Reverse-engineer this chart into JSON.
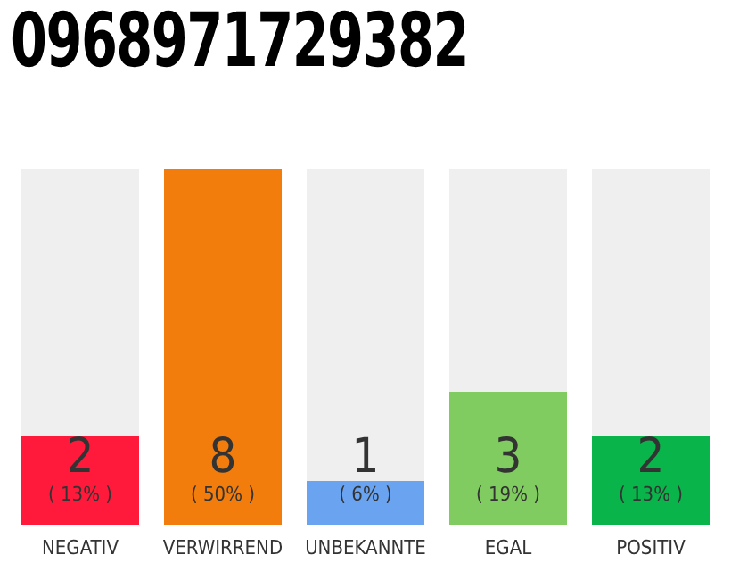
{
  "chart_data": {
    "type": "bar",
    "title": "0968971729382",
    "categories": [
      "NEGATIV",
      "VERWIRREND",
      "UNBEKANNTE",
      "EGAL",
      "POSITIV"
    ],
    "values": [
      2,
      8,
      1,
      3,
      2
    ],
    "colors": [
      "#ff1a3c",
      "#f27d0c",
      "#6aa3f0",
      "#80cc60",
      "#09b44a"
    ],
    "data_labels": true,
    "tick_labels": "x",
    "grid": false,
    "legend": false,
    "annotations": [
      "( 13% )",
      "( 50% )",
      "( 6% )",
      "( 19% )",
      "( 13% )"
    ]
  }
}
